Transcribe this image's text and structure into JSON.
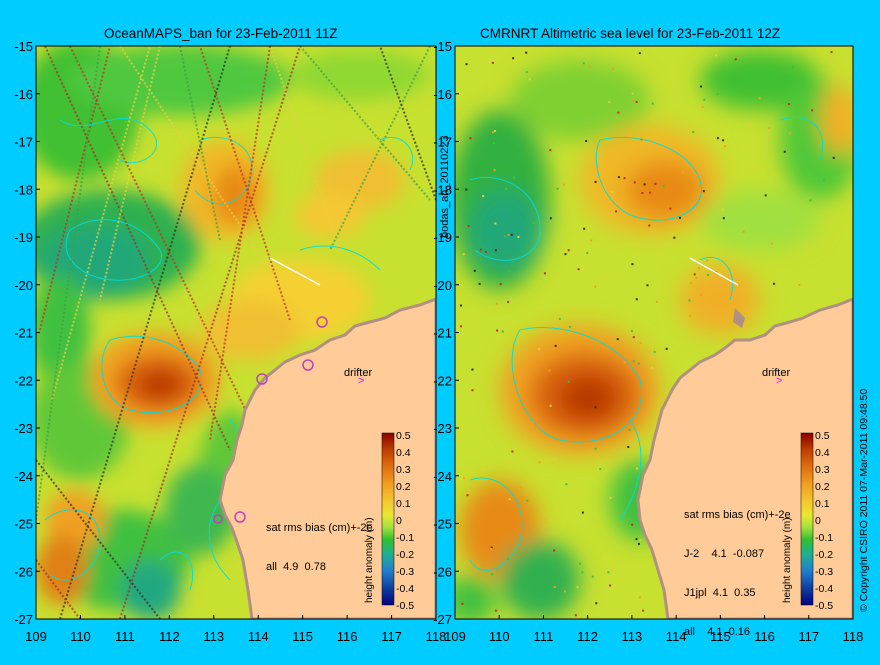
{
  "left_map": {
    "title": "OceanMAPS_ban for 23-Feb-2011 11Z",
    "lat_labels": [
      "-15",
      "-16",
      "-17",
      "-18",
      "-19",
      "-20",
      "-21",
      "-22",
      "-23",
      "-24",
      "-25",
      "-26",
      "-27"
    ],
    "lon_labels": [
      "109",
      "110",
      "111",
      "112",
      "113",
      "114",
      "115",
      "116",
      "117",
      "118"
    ],
    "drifter_label": "drifter",
    "stats": [
      "sat rms bias (cm)+-2e",
      "all  4.9  0.78"
    ]
  },
  "right_map": {
    "title": "CMRNRT Altimetric sea level  for 23-Feb-2011 12Z",
    "lat_labels": [
      "-15",
      "-16",
      "-17",
      "-18",
      "-19",
      "-20",
      "-21",
      "-22",
      "-23",
      "-24",
      "-25",
      "-26",
      "-27"
    ],
    "lon_labels": [
      "109",
      "110",
      "111",
      "112",
      "113",
      "114",
      "115",
      "116",
      "117",
      "118"
    ],
    "drifter_label": "drifter",
    "stats": [
      "sat rms bias (cm)+-2e",
      "J-2    4.1  -0.087",
      "J1jpl  4.1  0.35",
      "all    4.1  0.16"
    ]
  },
  "colorbar": {
    "ticks": [
      "0.5",
      "0.4",
      "0.3",
      "0.2",
      "0.1",
      "0",
      "-0.1",
      "-0.2",
      "-0.3",
      "-0.4",
      "-0.5"
    ],
    "label": "height anomaly (m)",
    "colors": [
      "#8b0000",
      "#c04000",
      "#e07010",
      "#f0a020",
      "#f5c830",
      "#e8e830",
      "#a0e040",
      "#30c030",
      "#20b090",
      "#2080d0",
      "#1040a0",
      "#000080"
    ]
  },
  "side_label": "bodas_an_20110223",
  "copyright": "© Copyright CSIRO 2011    07-Mar-2011 09:48:50",
  "colors": {
    "background": "#00ccff",
    "land": "#ffcc99",
    "coast": "#b09080",
    "contour": "#00dddd"
  }
}
